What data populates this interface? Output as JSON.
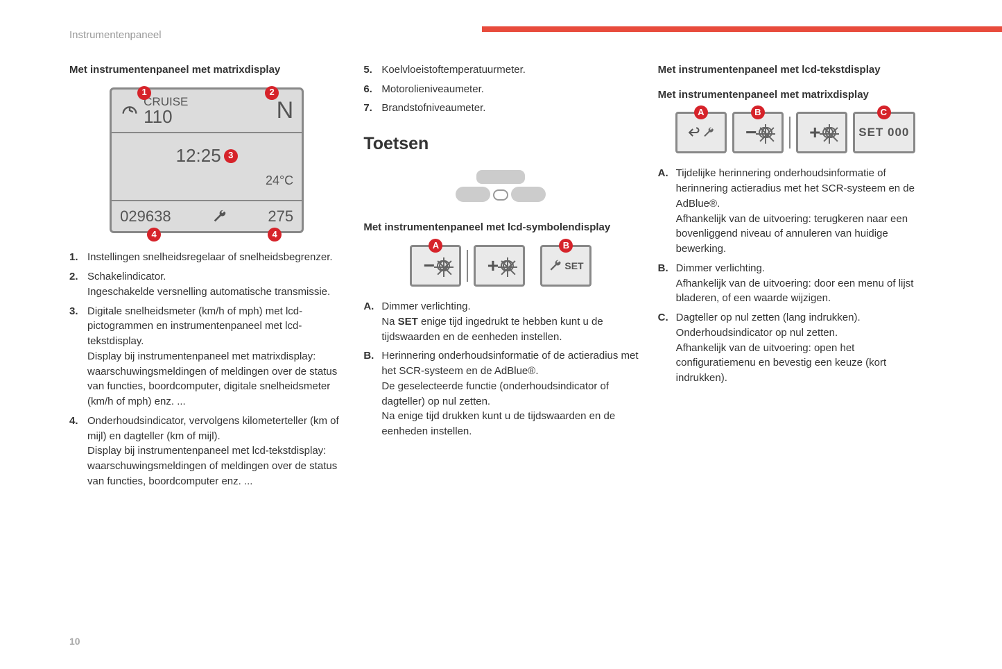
{
  "header": "Instrumentenpaneel",
  "page_num": "10",
  "colors": {
    "accent": "#e84b3c",
    "badge": "#d6232a",
    "panel_border": "#888",
    "panel_bg": "#dcdcdc"
  },
  "col1": {
    "heading": "Met instrumentenpaneel met matrixdisplay",
    "panel": {
      "cruise_label": "CRUISE",
      "cruise_speed": "110",
      "gear": "N",
      "clock": "12:25",
      "temp": "24°C",
      "odo": "029638",
      "trip": "275",
      "badges": {
        "b1": "1",
        "b2": "2",
        "b3": "3",
        "b4a": "4",
        "b4b": "4"
      }
    },
    "list": [
      {
        "m": "1.",
        "t": "Instellingen snelheidsregelaar of snelheidsbegrenzer."
      },
      {
        "m": "2.",
        "t": "Schakelindicator.\nIngeschakelde versnelling automatische transmissie."
      },
      {
        "m": "3.",
        "t": "Digitale snelheidsmeter (km/h of mph) met lcd-pictogrammen en instrumentenpaneel met lcd-tekstdisplay.\nDisplay bij instrumentenpaneel met matrixdisplay: waarschuwingsmeldingen of meldingen over de status van functies, boordcomputer, digitale snelheidsmeter (km/h of mph) enz. ..."
      },
      {
        "m": "4.",
        "t": "Onderhoudsindicator, vervolgens kilometerteller (km of mijl) en dagteller (km of mijl).\nDisplay bij instrumentenpaneel met lcd-tekstdisplay: waarschuwingsmeldingen of meldingen over de status van functies, boordcomputer enz. ..."
      }
    ]
  },
  "col2": {
    "list_top": [
      {
        "m": "5.",
        "t": "Koelvloeistoftemperatuurmeter."
      },
      {
        "m": "6.",
        "t": "Motorolieniveaumeter."
      },
      {
        "m": "7.",
        "t": "Brandstofniveaumeter."
      }
    ],
    "section": "Toetsen",
    "heading": "Met instrumentenpaneel met lcd-symbolendisplay",
    "badges": {
      "a": "A",
      "b": "B"
    },
    "btn_set": "SET",
    "list_alpha": [
      {
        "m": "A.",
        "t": "Dimmer verlichting.\nNa SET enige tijd ingedrukt te hebben kunt u de tijdswaarden en de eenheden instellen."
      },
      {
        "m": "B.",
        "t": "Herinnering onderhoudsinformatie of de actieradius met het SCR-systeem en de AdBlue®.\nDe geselecteerde functie (onderhoudsindicator of dagteller) op nul zetten.\nNa enige tijd drukken kunt u de tijdswaarden en de eenheden instellen."
      }
    ]
  },
  "col3": {
    "heading1": "Met instrumentenpaneel met lcd-tekstdisplay",
    "heading2": "Met instrumentenpaneel met matrixdisplay",
    "badges": {
      "a": "A",
      "b": "B",
      "c": "C"
    },
    "btn_set": "SET 000",
    "list_alpha": [
      {
        "m": "A.",
        "t": "Tijdelijke herinnering onderhoudsinformatie of herinnering actieradius met het SCR-systeem en de AdBlue®.\nAfhankelijk van de uitvoering: terugkeren naar een bovenliggend niveau of annuleren van huidige bewerking."
      },
      {
        "m": "B.",
        "t": "Dimmer verlichting.\nAfhankelijk van de uitvoering: door een menu of lijst bladeren, of een waarde wijzigen."
      },
      {
        "m": "C.",
        "t": "Dagteller op nul zetten (lang indrukken). Onderhoudsindicator op nul zetten.\nAfhankelijk van de uitvoering: open het configuratiemenu en bevestig een keuze (kort indrukken)."
      }
    ]
  }
}
